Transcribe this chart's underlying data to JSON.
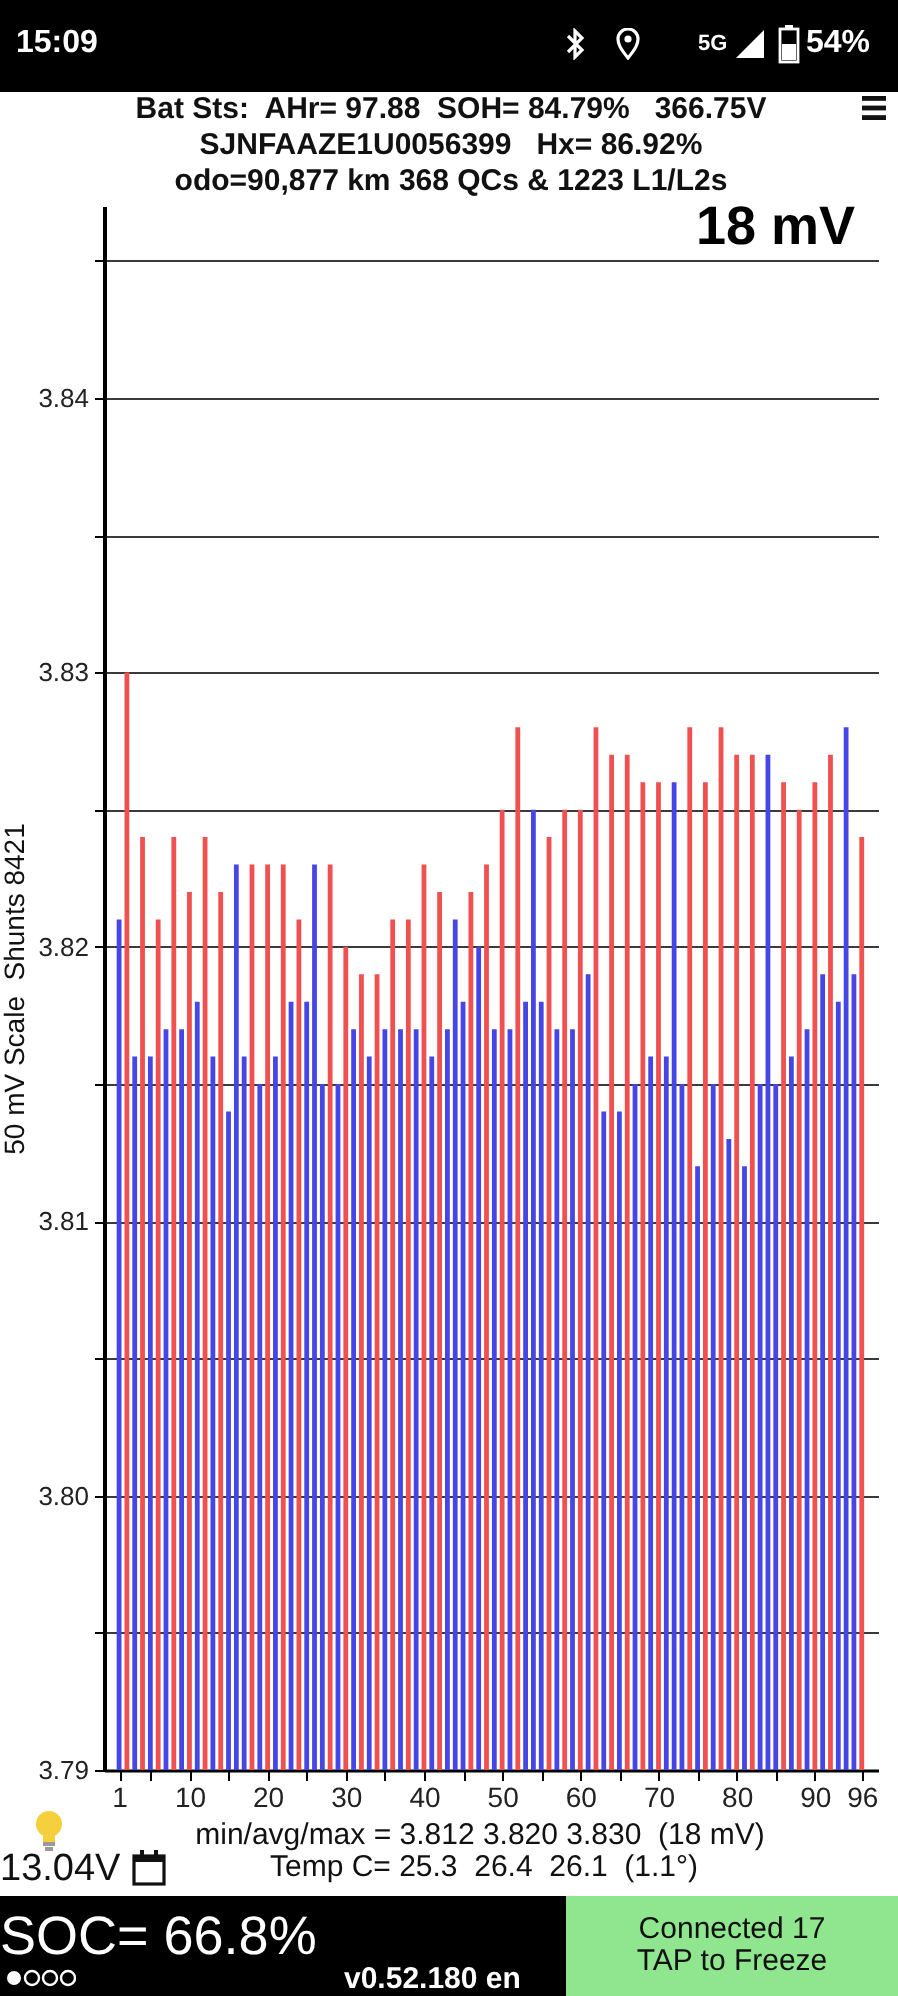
{
  "chart_data": {
    "type": "bar",
    "title": "Bat Sts:  AHr= 97.88  SOH= 84.79%   366.75V",
    "subtitle": "SJNFAAZE1U0056399   Hx= 86.92%\nodo=90,877 km 368 QCs & 1223 L1/L2s",
    "ylabel": "50 mV Scale  Shunts 8421",
    "x": [
      1,
      2,
      3,
      4,
      5,
      6,
      7,
      8,
      9,
      10,
      11,
      12,
      13,
      14,
      15,
      16,
      17,
      18,
      19,
      20,
      21,
      22,
      23,
      24,
      25,
      26,
      27,
      28,
      29,
      30,
      31,
      32,
      33,
      34,
      35,
      36,
      37,
      38,
      39,
      40,
      41,
      42,
      43,
      44,
      45,
      46,
      47,
      48,
      49,
      50,
      51,
      52,
      53,
      54,
      55,
      56,
      57,
      58,
      59,
      60,
      61,
      62,
      63,
      64,
      65,
      66,
      67,
      68,
      69,
      70,
      71,
      72,
      73,
      74,
      75,
      76,
      77,
      78,
      79,
      80,
      81,
      82,
      83,
      84,
      85,
      86,
      87,
      88,
      89,
      90,
      91,
      92,
      93,
      94,
      95,
      96
    ],
    "values": [
      3.821,
      3.83,
      3.816,
      3.824,
      3.816,
      3.821,
      3.817,
      3.824,
      3.817,
      3.822,
      3.818,
      3.824,
      3.816,
      3.822,
      3.814,
      3.823,
      3.816,
      3.823,
      3.815,
      3.823,
      3.816,
      3.823,
      3.818,
      3.821,
      3.818,
      3.823,
      3.815,
      3.823,
      3.815,
      3.82,
      3.817,
      3.819,
      3.816,
      3.819,
      3.817,
      3.821,
      3.817,
      3.821,
      3.817,
      3.823,
      3.816,
      3.822,
      3.817,
      3.821,
      3.818,
      3.822,
      3.82,
      3.823,
      3.817,
      3.825,
      3.817,
      3.828,
      3.818,
      3.825,
      3.818,
      3.824,
      3.817,
      3.825,
      3.817,
      3.825,
      3.819,
      3.828,
      3.814,
      3.827,
      3.814,
      3.827,
      3.815,
      3.826,
      3.816,
      3.826,
      3.816,
      3.826,
      3.815,
      3.828,
      3.812,
      3.826,
      3.815,
      3.828,
      3.813,
      3.827,
      3.812,
      3.827,
      3.815,
      3.827,
      3.815,
      3.826,
      3.816,
      3.825,
      3.817,
      3.826,
      3.819,
      3.827,
      3.818,
      3.828,
      3.819,
      3.824
    ],
    "colors": [
      "#4646e6",
      "#f05050",
      "#4646e6",
      "#f05050",
      "#4646e6",
      "#f05050",
      "#4646e6",
      "#f05050",
      "#4646e6",
      "#f05050",
      "#4646e6",
      "#f05050",
      "#4646e6",
      "#f05050",
      "#4646e6",
      "#4646e6",
      "#4646e6",
      "#f05050",
      "#4646e6",
      "#f05050",
      "#4646e6",
      "#f05050",
      "#4646e6",
      "#f05050",
      "#4646e6",
      "#4646e6",
      "#4646e6",
      "#f05050",
      "#4646e6",
      "#f05050",
      "#4646e6",
      "#f05050",
      "#4646e6",
      "#f05050",
      "#4646e6",
      "#f05050",
      "#4646e6",
      "#f05050",
      "#4646e6",
      "#f05050",
      "#4646e6",
      "#f05050",
      "#4646e6",
      "#4646e6",
      "#4646e6",
      "#f05050",
      "#4646e6",
      "#f05050",
      "#4646e6",
      "#f05050",
      "#4646e6",
      "#f05050",
      "#4646e6",
      "#4646e6",
      "#4646e6",
      "#f05050",
      "#4646e6",
      "#f05050",
      "#4646e6",
      "#f05050",
      "#4646e6",
      "#f05050",
      "#4646e6",
      "#f05050",
      "#4646e6",
      "#f05050",
      "#4646e6",
      "#f05050",
      "#4646e6",
      "#f05050",
      "#4646e6",
      "#4646e6",
      "#4646e6",
      "#f05050",
      "#4646e6",
      "#f05050",
      "#4646e6",
      "#f05050",
      "#4646e6",
      "#f05050",
      "#4646e6",
      "#f05050",
      "#4646e6",
      "#4646e6",
      "#4646e6",
      "#f05050",
      "#4646e6",
      "#f05050",
      "#4646e6",
      "#f05050",
      "#4646e6",
      "#f05050",
      "#4646e6",
      "#4646e6",
      "#4646e6",
      "#f05050"
    ],
    "xlim": [
      0.35,
      96.8
    ],
    "xticks": [
      1,
      {
        "value": 5,
        "label": null
      },
      10,
      {
        "value": 15,
        "label": null
      },
      20,
      {
        "value": 25,
        "label": null
      },
      30,
      {
        "value": 35,
        "label": null
      },
      40,
      {
        "value": 45,
        "label": null
      },
      50,
      {
        "value": 55,
        "label": null
      },
      60,
      {
        "value": 65,
        "label": null
      },
      70,
      {
        "value": 75,
        "label": null
      },
      80,
      {
        "value": 85,
        "label": null
      },
      90,
      96
    ],
    "ylim": [
      3.79,
      3.847
    ],
    "yticks": [
      3.79,
      {
        "value": 3.795,
        "label": null
      },
      {
        "value": 3.8,
        "label": "3.80"
      },
      {
        "value": 3.805,
        "label": null
      },
      3.81,
      {
        "value": 3.815,
        "label": null
      },
      3.82,
      {
        "value": 3.825,
        "label": null
      },
      3.83,
      {
        "value": 3.835,
        "label": null
      },
      3.84,
      {
        "value": 3.845,
        "label": null
      }
    ],
    "grid": "y",
    "annotations": [
      "18 mV",
      "min/avg/max = 3.812 3.820 3.830  (18 mV)",
      "Temp C= 25.3  26.4  26.1  (1.1°)",
      "13.04V",
      "SOC= 66.8%",
      "v0.52.180 en",
      "Connected 17",
      "TAP to Freeze",
      "15:09",
      "5G",
      "54%"
    ]
  }
}
